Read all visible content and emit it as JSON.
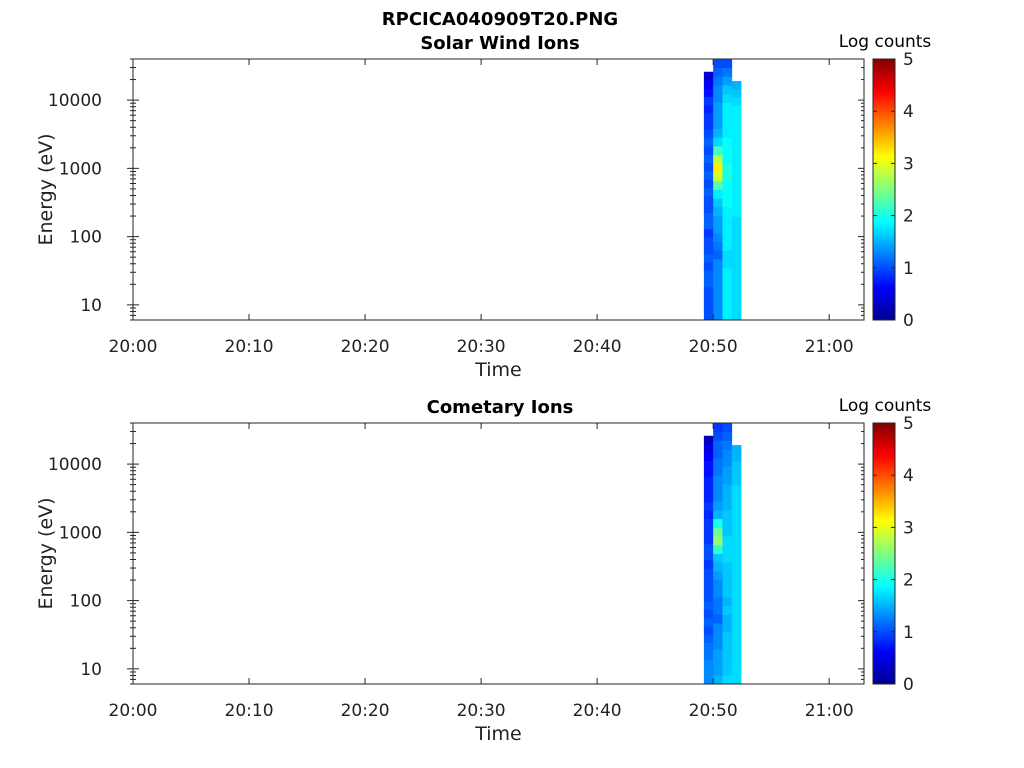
{
  "figure_title": "RPCICA040909T20.PNG",
  "chart_data": [
    {
      "type": "heatmap",
      "title": "Solar Wind Ions",
      "xlabel": "Time",
      "ylabel": "Energy (eV)",
      "x_ticks": [
        "20:00",
        "20:10",
        "20:20",
        "20:30",
        "20:40",
        "20:50",
        "21:00"
      ],
      "x_range_minutes": [
        0,
        63
      ],
      "y_scale": "log",
      "y_ticks": [
        "10",
        "100",
        "1000",
        "10000"
      ],
      "y_range": [
        6,
        40000
      ],
      "colorbar": {
        "title": "Log counts",
        "ticks": [
          "0",
          "1",
          "2",
          "3",
          "4",
          "5"
        ],
        "range": [
          0,
          5
        ],
        "colormap": "jet"
      },
      "columns": [
        {
          "t_start": 49.2,
          "t_end": 50.0,
          "e_top": 26000,
          "values": [
            1.0,
            1.0,
            1.0,
            1.0,
            1.1,
            1.1,
            1.0,
            1.1,
            1.0,
            1.0,
            0.9,
            1.1,
            1.1,
            1.0,
            1.0,
            1.1,
            1.0,
            1.1,
            1.0,
            1.1,
            1.0,
            1.1,
            1.0,
            0.9,
            0.9,
            0.8,
            0.9,
            0.7,
            0.6,
            0.4
          ]
        },
        {
          "t_start": 50.0,
          "t_end": 50.8,
          "e_top": 40000,
          "values": [
            1.3,
            1.3,
            1.3,
            1.3,
            1.3,
            1.3,
            1.3,
            1.1,
            1.2,
            1.3,
            1.4,
            1.4,
            1.5,
            1.6,
            1.8,
            2.3,
            2.9,
            3.2,
            2.8,
            2.2,
            1.7,
            1.5,
            1.4,
            1.4,
            1.4,
            1.3,
            1.3,
            1.2,
            1.1,
            1.0
          ]
        },
        {
          "t_start": 50.8,
          "t_end": 51.6,
          "e_top": 40000,
          "values": [
            1.8,
            1.8,
            1.8,
            1.8,
            1.8,
            1.8,
            1.7,
            1.7,
            1.8,
            1.8,
            1.8,
            1.8,
            1.8,
            1.9,
            1.9,
            1.9,
            2.0,
            2.0,
            1.9,
            1.9,
            1.9,
            1.8,
            1.8,
            1.8,
            1.8,
            1.7,
            1.6,
            1.4,
            1.2,
            1.0
          ]
        },
        {
          "t_start": 51.6,
          "t_end": 52.4,
          "e_top": 19000,
          "values": [
            1.7,
            1.7,
            1.7,
            1.7,
            1.7,
            1.7,
            1.7,
            1.7,
            1.7,
            1.7,
            1.7,
            1.7,
            1.7,
            1.8,
            1.8,
            1.8,
            1.8,
            1.8,
            1.8,
            1.8,
            1.8,
            1.8,
            1.8,
            1.8,
            1.8,
            1.8,
            1.8,
            1.7,
            1.6,
            1.5
          ]
        }
      ]
    },
    {
      "type": "heatmap",
      "title": "Cometary Ions",
      "xlabel": "Time",
      "ylabel": "Energy (eV)",
      "x_ticks": [
        "20:00",
        "20:10",
        "20:20",
        "20:30",
        "20:40",
        "20:50",
        "21:00"
      ],
      "x_range_minutes": [
        0,
        63
      ],
      "y_scale": "log",
      "y_ticks": [
        "10",
        "100",
        "1000",
        "10000"
      ],
      "y_range": [
        6,
        40000
      ],
      "colorbar": {
        "title": "Log counts",
        "ticks": [
          "0",
          "1",
          "2",
          "3",
          "4",
          "5"
        ],
        "range": [
          0,
          5
        ],
        "colormap": "jet"
      },
      "columns": [
        {
          "t_start": 49.2,
          "t_end": 50.0,
          "e_top": 26000,
          "values": [
            1.3,
            1.3,
            1.3,
            1.2,
            1.2,
            1.1,
            1.0,
            1.1,
            1.0,
            1.1,
            1.0,
            1.0,
            1.0,
            1.0,
            0.9,
            1.0,
            1.0,
            0.9,
            0.9,
            0.9,
            0.8,
            0.9,
            0.8,
            0.8,
            0.8,
            0.7,
            0.7,
            0.6,
            0.5,
            0.3
          ]
        },
        {
          "t_start": 50.0,
          "t_end": 50.8,
          "e_top": 40000,
          "values": [
            1.5,
            1.4,
            1.4,
            1.4,
            1.3,
            1.3,
            1.3,
            1.1,
            1.2,
            1.2,
            1.3,
            1.3,
            1.4,
            1.5,
            1.6,
            2.1,
            2.6,
            2.4,
            2.0,
            1.5,
            1.4,
            1.3,
            1.3,
            1.3,
            1.2,
            1.2,
            1.1,
            1.1,
            1.0,
            0.9
          ]
        },
        {
          "t_start": 50.8,
          "t_end": 51.6,
          "e_top": 40000,
          "values": [
            1.7,
            1.6,
            1.6,
            1.6,
            1.6,
            1.6,
            1.5,
            1.5,
            1.6,
            1.5,
            1.6,
            1.6,
            1.6,
            1.6,
            1.7,
            1.7,
            1.7,
            1.6,
            1.6,
            1.6,
            1.5,
            1.5,
            1.5,
            1.4,
            1.4,
            1.3,
            1.3,
            1.2,
            1.1,
            1.0
          ]
        },
        {
          "t_start": 51.6,
          "t_end": 52.4,
          "e_top": 19000,
          "values": [
            1.7,
            1.7,
            1.7,
            1.7,
            1.7,
            1.7,
            1.7,
            1.7,
            1.7,
            1.7,
            1.7,
            1.7,
            1.7,
            1.7,
            1.7,
            1.7,
            1.7,
            1.7,
            1.7,
            1.7,
            1.7,
            1.7,
            1.7,
            1.7,
            1.7,
            1.6,
            1.6,
            1.6,
            1.5,
            1.5
          ]
        }
      ]
    }
  ]
}
